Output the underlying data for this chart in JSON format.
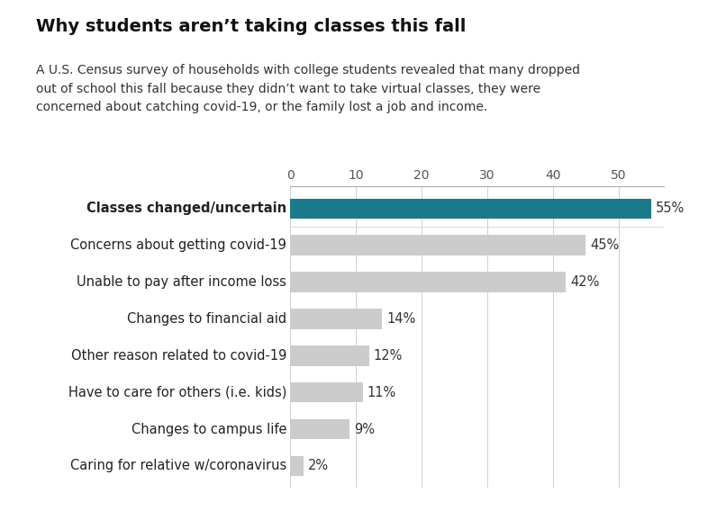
{
  "title": "Why students aren’t taking classes this fall",
  "subtitle": "A U.S. Census survey of households with college students revealed that many dropped\nout of school this fall because they didn’t want to take virtual classes, they were\nconcerned about catching covid-19, or the family lost a job and income.",
  "categories": [
    "Caring for relative w/coronavirus",
    "Changes to campus life",
    "Have to care for others (i.e. kids)",
    "Other reason related to covid-19",
    "Changes to financial aid",
    "Unable to pay after income loss",
    "Concerns about getting covid-19",
    "Classes changed/uncertain"
  ],
  "values": [
    2,
    9,
    11,
    12,
    14,
    42,
    45,
    55
  ],
  "bar_colors": [
    "#cccccc",
    "#cccccc",
    "#cccccc",
    "#cccccc",
    "#cccccc",
    "#cccccc",
    "#cccccc",
    "#1b7a8a"
  ],
  "label_bold": [
    false,
    false,
    false,
    false,
    false,
    false,
    false,
    true
  ],
  "xlim": [
    0,
    57
  ],
  "xticks": [
    0,
    10,
    20,
    30,
    40,
    50
  ],
  "bg_color": "#ffffff",
  "bar_height": 0.55,
  "title_fontsize": 14,
  "subtitle_fontsize": 10,
  "label_fontsize": 10.5,
  "value_fontsize": 10.5,
  "tick_fontsize": 10
}
